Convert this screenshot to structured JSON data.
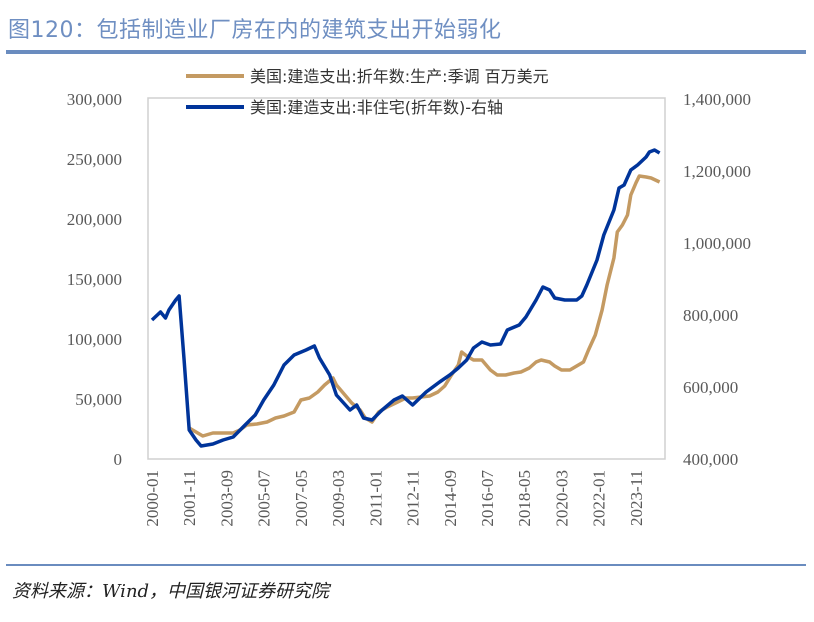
{
  "title": "图120：包括制造业厂房在内的建筑支出开始弱化",
  "source": "资料来源：Wind，中国银河证券研究院",
  "colors": {
    "title": "#6f8fc2",
    "rule": "#6a8cbf",
    "series_manufacturing": "#c49a62",
    "series_nonresidential": "#00349a"
  },
  "chart_data": {
    "type": "line",
    "x_tick_labels": [
      "2000-01",
      "2001-11",
      "2003-09",
      "2005-07",
      "2007-05",
      "2009-03",
      "2011-01",
      "2012-11",
      "2014-09",
      "2016-07",
      "2018-05",
      "2020-03",
      "2022-01",
      "2023-11"
    ],
    "left_axis": {
      "range": [
        0,
        300000
      ],
      "tick_labels": [
        "0",
        "50,000",
        "100,000",
        "150,000",
        "200,000",
        "250,000",
        "300,000"
      ]
    },
    "right_axis": {
      "range": [
        400000,
        1400000
      ],
      "tick_labels": [
        "400,000",
        "600,000",
        "800,000",
        "1,000,000",
        "1,200,000",
        "1,400,000"
      ]
    },
    "grid": false,
    "legend_position": "top",
    "series": [
      {
        "name": "美国:建造支出:折年数:生产:季调 百万美元",
        "axis": "left",
        "color": "#c49a62",
        "x": [
          "2001-11",
          "2002-03",
          "2002-07",
          "2003-01",
          "2003-07",
          "2004-01",
          "2004-05",
          "2004-09",
          "2005-03",
          "2005-09",
          "2006-02",
          "2006-07",
          "2007-01",
          "2007-05",
          "2007-10",
          "2008-03",
          "2008-07",
          "2008-12",
          "2009-02",
          "2009-07",
          "2009-11",
          "2010-04",
          "2010-07",
          "2010-11",
          "2011-03",
          "2011-08",
          "2012-01",
          "2012-07",
          "2012-11",
          "2013-04",
          "2013-09",
          "2014-02",
          "2014-06",
          "2014-10",
          "2015-02",
          "2015-04",
          "2015-07",
          "2015-11",
          "2016-04",
          "2016-09",
          "2017-01",
          "2017-06",
          "2017-11",
          "2018-03",
          "2018-08",
          "2018-12",
          "2019-03",
          "2019-08",
          "2019-11",
          "2020-03",
          "2020-08",
          "2020-12",
          "2021-04",
          "2021-07",
          "2021-11",
          "2022-03",
          "2022-06",
          "2022-10",
          "2022-12",
          "2023-03",
          "2023-06",
          "2023-08",
          "2023-11",
          "2024-01",
          "2024-05",
          "2024-08",
          "2025-01"
        ],
        "values": [
          25800,
          22500,
          19200,
          21700,
          21700,
          21700,
          24200,
          28300,
          29200,
          30800,
          34200,
          35800,
          39200,
          49200,
          50800,
          55800,
          61700,
          67500,
          61700,
          53300,
          46700,
          40800,
          34200,
          30800,
          39200,
          43300,
          46700,
          50800,
          50800,
          51700,
          52500,
          55800,
          60800,
          70000,
          78300,
          89200,
          85800,
          82500,
          82500,
          74200,
          70000,
          70000,
          71700,
          72500,
          75800,
          80800,
          82500,
          80800,
          77500,
          74200,
          74200,
          77500,
          80800,
          90800,
          103300,
          124200,
          145000,
          167500,
          189200,
          195000,
          203300,
          220000,
          230000,
          235800,
          235000,
          234200,
          230800
        ]
      },
      {
        "name": "美国:建造支出:非住宅(折年数)-右轴",
        "axis": "right",
        "color": "#00349a",
        "x": [
          "2000-01",
          "2000-06",
          "2000-09",
          "2000-11",
          "2001-03",
          "2001-05",
          "2001-08",
          "2001-11",
          "2002-03",
          "2002-06",
          "2003-01",
          "2003-07",
          "2004-01",
          "2004-08",
          "2005-02",
          "2005-07",
          "2006-01",
          "2006-07",
          "2007-01",
          "2007-08",
          "2008-01",
          "2008-04",
          "2008-10",
          "2009-02",
          "2009-10",
          "2010-02",
          "2010-06",
          "2010-11",
          "2011-05",
          "2011-12",
          "2012-05",
          "2012-11",
          "2013-07",
          "2014-03",
          "2014-09",
          "2015-02",
          "2015-07",
          "2015-11",
          "2016-04",
          "2016-09",
          "2017-03",
          "2017-07",
          "2018-02",
          "2018-06",
          "2018-12",
          "2019-04",
          "2019-08",
          "2019-11",
          "2020-05",
          "2020-12",
          "2021-03",
          "2021-06",
          "2021-12",
          "2022-04",
          "2022-10",
          "2023-01",
          "2023-04",
          "2023-08",
          "2023-12",
          "2024-05",
          "2024-07",
          "2024-10",
          "2025-01"
        ],
        "values": [
          786100,
          808300,
          791700,
          813900,
          841700,
          852800,
          675000,
          480600,
          452800,
          436100,
          441700,
          452800,
          461100,
          494400,
          522200,
          563900,
          605600,
          661100,
          688900,
          702800,
          713900,
          680600,
          633300,
          577800,
          536100,
          550000,
          513900,
          508300,
          536100,
          563900,
          575000,
          550000,
          586100,
          613900,
          633300,
          652800,
          675000,
          708300,
          725000,
          716700,
          719400,
          758300,
          772200,
          794400,
          841700,
          877800,
          869400,
          847200,
          841700,
          841700,
          852800,
          883300,
          952800,
          1022200,
          1091700,
          1152800,
          1161100,
          1202800,
          1216700,
          1238900,
          1252800,
          1258300,
          1250000
        ]
      }
    ]
  }
}
